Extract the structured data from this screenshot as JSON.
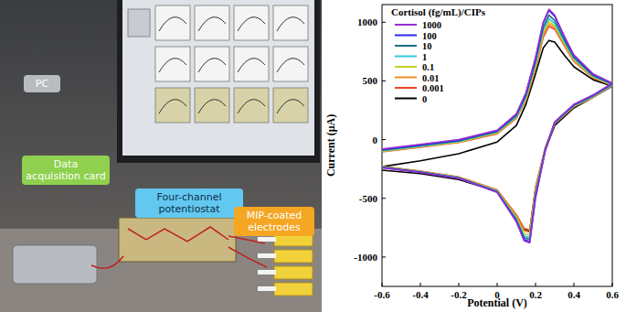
{
  "photo": {
    "labels": [
      "PC",
      "Data acquisition card",
      "Four-channel potentiostat",
      "MIP-coated electrodes"
    ]
  },
  "chart_data": {
    "type": "line",
    "x_label": "Potential (V)",
    "y_label": "Current (μA)",
    "legend_title": "Cortisol (fg/mL)/CIPs",
    "legend": "upper left",
    "grid": false,
    "xlim": [
      -0.6,
      0.6
    ],
    "xticks": [
      -0.6,
      -0.4,
      -0.2,
      0,
      0.2,
      0.4,
      0.6
    ],
    "ylim": [
      -1250,
      1150
    ],
    "yticks": [
      -1000,
      -500,
      0,
      500,
      1000
    ],
    "x": [
      -0.6,
      -0.4,
      -0.2,
      0,
      0.1,
      0.15,
      0.2,
      0.24,
      0.27,
      0.3,
      0.35,
      0.4,
      0.5,
      0.6,
      0.5,
      0.4,
      0.3,
      0.25,
      0.2,
      0.17,
      0.14,
      0.1,
      0,
      -0.2,
      -0.4,
      -0.6
    ],
    "series": [
      {
        "name": "1000",
        "color": "#9b30d0",
        "values": [
          -80,
          -40,
          0,
          80,
          220,
          400,
          700,
          1000,
          1110,
          1060,
          880,
          720,
          560,
          480,
          380,
          300,
          150,
          -100,
          -500,
          -880,
          -860,
          -700,
          -450,
          -330,
          -280,
          -240
        ]
      },
      {
        "name": "100",
        "color": "#2a2ae8",
        "values": [
          -85,
          -45,
          -5,
          75,
          215,
          390,
          690,
          990,
          1100,
          1050,
          875,
          715,
          555,
          478,
          378,
          298,
          150,
          -95,
          -490,
          -870,
          -850,
          -695,
          -448,
          -328,
          -278,
          -238
        ]
      },
      {
        "name": "10",
        "color": "#1a6e8a",
        "values": [
          -90,
          -50,
          -10,
          70,
          205,
          375,
          665,
          955,
          1060,
          1015,
          850,
          700,
          545,
          472,
          372,
          292,
          145,
          -90,
          -470,
          -850,
          -835,
          -685,
          -444,
          -326,
          -276,
          -236
        ]
      },
      {
        "name": "1",
        "color": "#30c8d8",
        "values": [
          -95,
          -55,
          -15,
          65,
          195,
          360,
          645,
          930,
          1030,
          990,
          835,
          690,
          540,
          468,
          368,
          288,
          142,
          -85,
          -455,
          -835,
          -820,
          -675,
          -440,
          -324,
          -274,
          -234
        ]
      },
      {
        "name": "0.1",
        "color": "#c8d020",
        "values": [
          -100,
          -60,
          -20,
          60,
          190,
          350,
          630,
          910,
          1005,
          970,
          820,
          680,
          535,
          465,
          365,
          285,
          140,
          -80,
          -440,
          -815,
          -800,
          -665,
          -436,
          -322,
          -272,
          -232
        ]
      },
      {
        "name": "0.01",
        "color": "#f08c28",
        "values": [
          -100,
          -60,
          -20,
          55,
          185,
          340,
          615,
          890,
          985,
          955,
          810,
          672,
          530,
          462,
          362,
          282,
          138,
          -75,
          -420,
          -790,
          -775,
          -650,
          -432,
          -320,
          -270,
          -230
        ]
      },
      {
        "name": "0.001",
        "color": "#e84820",
        "values": [
          -105,
          -65,
          -25,
          50,
          180,
          330,
          600,
          870,
          965,
          940,
          800,
          665,
          525,
          460,
          360,
          280,
          136,
          -70,
          -405,
          -770,
          -755,
          -640,
          -428,
          -318,
          -268,
          -228
        ]
      },
      {
        "name": "0",
        "color": "#000000",
        "values": [
          -230,
          -180,
          -120,
          -20,
          120,
          300,
          560,
          780,
          845,
          830,
          720,
          620,
          510,
          455,
          360,
          270,
          120,
          -90,
          -420,
          -780,
          -770,
          -650,
          -440,
          -340,
          -290,
          -260
        ]
      }
    ]
  }
}
